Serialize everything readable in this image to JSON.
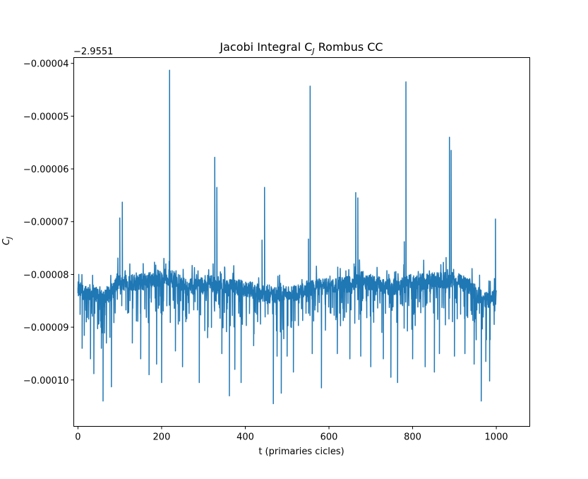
{
  "chart_data": {
    "type": "line",
    "title": "Jacobi Integral C",
    "title_subscript": "J",
    "title_suffix": " Rombus CC",
    "xlabel": "t (primaries cicles)",
    "ylabel": "C",
    "ylabel_subscript": "J",
    "y_offset_label": "−2.9551",
    "xlim": [
      -10,
      1080
    ],
    "ylim": [
      -0.0001088,
      -3.89e-05
    ],
    "x_ticks": [
      0,
      200,
      400,
      600,
      800,
      1000
    ],
    "x_tick_labels": [
      "0",
      "200",
      "400",
      "600",
      "800",
      "1000"
    ],
    "y_ticks": [
      -4e-05,
      -5e-05,
      -6e-05,
      -7e-05,
      -8e-05,
      -9e-05,
      -0.0001
    ],
    "y_tick_labels": [
      "−0.00004",
      "−0.00005",
      "−0.00006",
      "−0.00007",
      "−0.00008",
      "−0.00009",
      "−0.00010"
    ],
    "grid": false,
    "series": [
      {
        "color": "#1f77b4",
        "x_start": 0,
        "x_end": 1000,
        "baseline": [
          [
            0,
            -8.3e-05
          ],
          [
            60,
            -8.4e-05
          ],
          [
            80,
            -8.35e-05
          ],
          [
            95,
            -8.15e-05
          ],
          [
            150,
            -8.15e-05
          ],
          [
            210,
            -8.05e-05
          ],
          [
            230,
            -8.1e-05
          ],
          [
            260,
            -8.25e-05
          ],
          [
            320,
            -8.15e-05
          ],
          [
            350,
            -8.25e-05
          ],
          [
            380,
            -8.25e-05
          ],
          [
            420,
            -8.3e-05
          ],
          [
            450,
            -8.4e-05
          ],
          [
            520,
            -8.35e-05
          ],
          [
            560,
            -8.25e-05
          ],
          [
            640,
            -8.2e-05
          ],
          [
            680,
            -8.1e-05
          ],
          [
            720,
            -8.2e-05
          ],
          [
            760,
            -8.25e-05
          ],
          [
            800,
            -8.15e-05
          ],
          [
            900,
            -8.1e-05
          ],
          [
            940,
            -8.25e-05
          ],
          [
            970,
            -8.5e-05
          ],
          [
            1000,
            -8.45e-05
          ]
        ],
        "peaks": [
          [
            0,
            -8.35e-05
          ],
          [
            2,
            -8e-05
          ],
          [
            100,
            -6.93e-05
          ],
          [
            106,
            -6.63e-05
          ],
          [
            210,
            -7.8e-05
          ],
          [
            218,
            -7.75e-05
          ],
          [
            219,
            -4.13e-05
          ],
          [
            323,
            -7.8e-05
          ],
          [
            327,
            -5.78e-05
          ],
          [
            332,
            -6.35e-05
          ],
          [
            440,
            -7.35e-05
          ],
          [
            446,
            -6.35e-05
          ],
          [
            551,
            -7.33e-05
          ],
          [
            555,
            -4.43e-05
          ],
          [
            660,
            -7.8e-05
          ],
          [
            664,
            -6.45e-05
          ],
          [
            669,
            -6.55e-05
          ],
          [
            780,
            -7.38e-05
          ],
          [
            784,
            -4.35e-05
          ],
          [
            880,
            -7.68e-05
          ],
          [
            888,
            -5.4e-05
          ],
          [
            892,
            -5.65e-05
          ],
          [
            998,
            -6.95e-05
          ]
        ],
        "dips": [
          [
            10,
            -9.4e-05
          ],
          [
            20,
            -8.9e-05
          ],
          [
            30,
            -9.6e-05
          ],
          [
            38,
            -9.88e-05
          ],
          [
            48,
            -8.95e-05
          ],
          [
            56,
            -9.4e-05
          ],
          [
            60,
            -0.000104
          ],
          [
            68,
            -9.3e-05
          ],
          [
            80,
            -0.0001013
          ],
          [
            130,
            -9.3e-05
          ],
          [
            150,
            -9.6e-05
          ],
          [
            170,
            -9.9e-05
          ],
          [
            188,
            -9.7e-05
          ],
          [
            200,
            -0.0001005
          ],
          [
            233,
            -9.45e-05
          ],
          [
            250,
            -9.75e-05
          ],
          [
            290,
            -0.0001005
          ],
          [
            310,
            -9.2e-05
          ],
          [
            344,
            -9.5e-05
          ],
          [
            362,
            -0.000103
          ],
          [
            375,
            -9.8e-05
          ],
          [
            390,
            -0.0001005
          ],
          [
            420,
            -9.35e-05
          ],
          [
            467,
            -0.0001045
          ],
          [
            476,
            -9.55e-05
          ],
          [
            486,
            -0.0001025
          ],
          [
            500,
            -9.55e-05
          ],
          [
            515,
            -9.85e-05
          ],
          [
            560,
            -9.5e-05
          ],
          [
            582,
            -0.0001015
          ],
          [
            620,
            -9.5e-05
          ],
          [
            650,
            -9.6e-05
          ],
          [
            676,
            -9.55e-05
          ],
          [
            700,
            -9.75e-05
          ],
          [
            730,
            -9.6e-05
          ],
          [
            748,
            -9.95e-05
          ],
          [
            764,
            -0.0001005
          ],
          [
            800,
            -9.6e-05
          ],
          [
            830,
            -9.75e-05
          ],
          [
            852,
            -9.85e-05
          ],
          [
            864,
            -9.5e-05
          ],
          [
            900,
            -9.55e-05
          ],
          [
            925,
            -9.5e-05
          ],
          [
            947,
            -9.7e-05
          ],
          [
            964,
            -0.000104
          ],
          [
            975,
            -9.65e-05
          ],
          [
            984,
            -0.0001002
          ]
        ]
      }
    ]
  }
}
